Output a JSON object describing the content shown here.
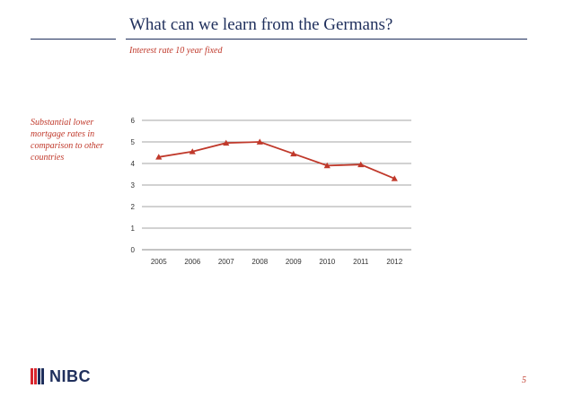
{
  "slide": {
    "title": "What can we learn from the Germans?",
    "subtitle": "Interest rate 10 year fixed",
    "side_note_lines": [
      "Substantial lower",
      "mortgage rates in",
      "comparison to other",
      "countries"
    ],
    "page_number": "5",
    "logo_text": "NIBC",
    "colors": {
      "title": "#1f2f5c",
      "accent": "#c0392b",
      "series": "#c0392b",
      "logo_red": "#d8262e",
      "logo_blue": "#1f2f5c"
    }
  },
  "chart_data": {
    "type": "line",
    "categories": [
      "2005",
      "2006",
      "2007",
      "2008",
      "2009",
      "2010",
      "2011",
      "2012"
    ],
    "series": [
      {
        "values": [
          4.3,
          4.55,
          4.95,
          5.0,
          4.45,
          3.9,
          3.95,
          3.3
        ],
        "marker": "triangle"
      }
    ],
    "ylim": [
      0,
      6
    ],
    "yticks": [
      0,
      1,
      2,
      3,
      4,
      5,
      6
    ],
    "grid": true,
    "legend": "none"
  }
}
